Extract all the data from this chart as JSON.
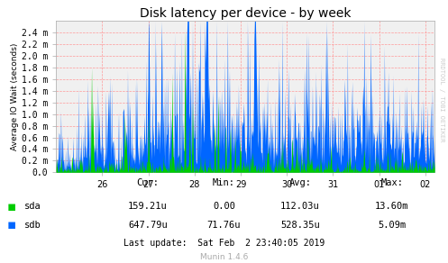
{
  "title": "Disk latency per device - by week",
  "ylabel": "Average IO Wait (seconds)",
  "xlabel_ticks": [
    "26",
    "27",
    "28",
    "29",
    "30",
    "31",
    "01",
    "02"
  ],
  "ylim": [
    0,
    0.0026
  ],
  "yticks": [
    0.0,
    0.0002,
    0.0004,
    0.0006,
    0.0008,
    0.001,
    0.0012,
    0.0014,
    0.0016,
    0.0018,
    0.002,
    0.0022,
    0.0024
  ],
  "ytick_labels": [
    "0.0",
    "0.2 m",
    "0.4 m",
    "0.6 m",
    "0.8 m",
    "1.0 m",
    "1.2 m",
    "1.4 m",
    "1.6 m",
    "1.8 m",
    "2.0 m",
    "2.2 m",
    "2.4 m"
  ],
  "bg_color": "#FFFFFF",
  "plot_bg_color": "#F0F0F0",
  "grid_color": "#FF9999",
  "sda_color": "#00CC00",
  "sdb_color": "#0066FF",
  "title_fontsize": 10,
  "axis_fontsize": 7,
  "legend_fontsize": 7.5,
  "cur_label": "Cur:",
  "min_label": "Min:",
  "avg_label": "Avg:",
  "max_label": "Max:",
  "sda_cur": "159.21u",
  "sda_min": "0.00",
  "sda_avg": "112.03u",
  "sda_max": "13.60m",
  "sdb_cur": "647.79u",
  "sdb_min": "71.76u",
  "sdb_avg": "528.35u",
  "sdb_max": "5.09m",
  "last_update": "Last update:  Sat Feb  2 23:40:05 2019",
  "munin_version": "Munin 1.4.6",
  "right_label": "RRDTOOL / TOBI OETIKER",
  "n_points": 800,
  "arrow_color": "#CC0000"
}
